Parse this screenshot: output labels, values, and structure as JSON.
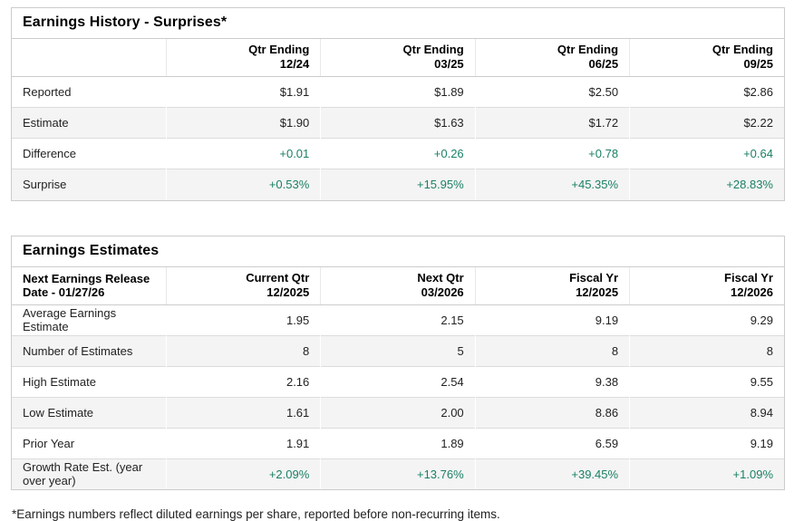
{
  "colors": {
    "positive": "#1b8065",
    "border": "#cccccc",
    "alt_row_bg": "#f4f4f4"
  },
  "surprises_table": {
    "title": "Earnings History - Surprises*",
    "columns": [
      {
        "line1": "Qtr Ending",
        "line2": "12/24"
      },
      {
        "line1": "Qtr Ending",
        "line2": "03/25"
      },
      {
        "line1": "Qtr Ending",
        "line2": "06/25"
      },
      {
        "line1": "Qtr Ending",
        "line2": "09/25"
      }
    ],
    "rows": [
      {
        "label": "Reported",
        "values": [
          "$1.91",
          "$1.89",
          "$2.50",
          "$2.86"
        ]
      },
      {
        "label": "Estimate",
        "values": [
          "$1.90",
          "$1.63",
          "$1.72",
          "$2.22"
        ]
      },
      {
        "label": "Difference",
        "values": [
          "+0.01",
          "+0.26",
          "+0.78",
          "+0.64"
        ]
      },
      {
        "label": "Surprise",
        "values": [
          "+0.53%",
          "+15.95%",
          "+45.35%",
          "+28.83%"
        ]
      }
    ]
  },
  "estimates_table": {
    "title": "Earnings Estimates",
    "row_header": "Next Earnings Release Date - 01/27/26",
    "columns": [
      {
        "line1": "Current Qtr",
        "line2": "12/2025"
      },
      {
        "line1": "Next Qtr",
        "line2": "03/2026"
      },
      {
        "line1": "Fiscal Yr",
        "line2": "12/2025"
      },
      {
        "line1": "Fiscal Yr",
        "line2": "12/2026"
      }
    ],
    "rows": [
      {
        "label": "Average Earnings Estimate",
        "values": [
          "1.95",
          "2.15",
          "9.19",
          "9.29"
        ]
      },
      {
        "label": "Number of Estimates",
        "values": [
          "8",
          "5",
          "8",
          "8"
        ]
      },
      {
        "label": "High Estimate",
        "values": [
          "2.16",
          "2.54",
          "9.38",
          "9.55"
        ]
      },
      {
        "label": "Low Estimate",
        "values": [
          "1.61",
          "2.00",
          "8.86",
          "8.94"
        ]
      },
      {
        "label": "Prior Year",
        "values": [
          "1.91",
          "1.89",
          "6.59",
          "9.19"
        ]
      },
      {
        "label": "Growth Rate Est. (year over year)",
        "values": [
          "+2.09%",
          "+13.76%",
          "+39.45%",
          "+1.09%"
        ]
      }
    ]
  },
  "footnote": "*Earnings numbers reflect diluted earnings per share, reported before non-recurring items."
}
